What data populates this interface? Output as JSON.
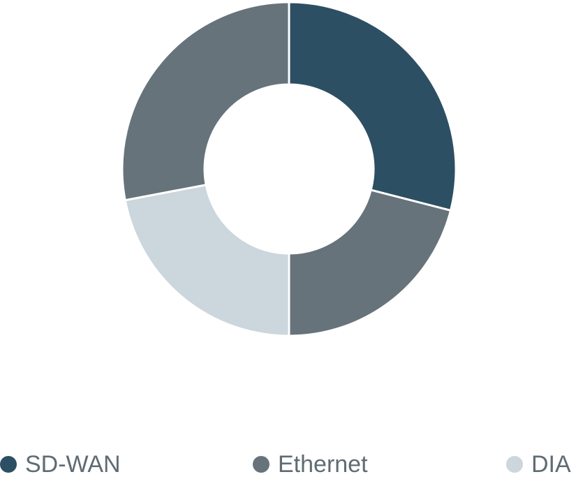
{
  "chart_data": {
    "type": "pie",
    "variant": "donut",
    "series": [
      {
        "name": "SD-WAN",
        "value": 29,
        "color": "#2d4f63"
      },
      {
        "name": "Ethernet",
        "value": 21,
        "color": "#67737b"
      },
      {
        "name": "DIA",
        "value": 22,
        "color": "#ccd6dd"
      },
      {
        "name": "Ethernet",
        "value": 28,
        "color": "#67737b"
      }
    ],
    "legend": {
      "position": "bottom",
      "items": [
        {
          "label": "SD-WAN",
          "color": "#2d4f63"
        },
        {
          "label": "Ethernet",
          "color": "#67737b"
        },
        {
          "label": "DIA",
          "color": "#ccd6dd"
        }
      ]
    },
    "title": "",
    "subtitle": "",
    "grid": false
  }
}
